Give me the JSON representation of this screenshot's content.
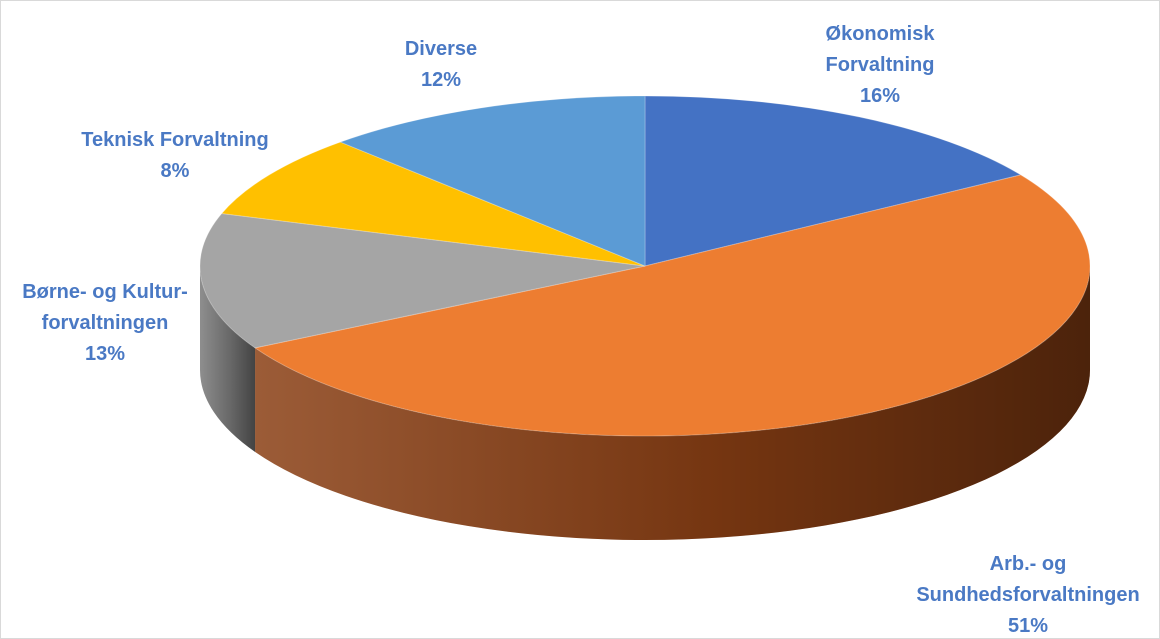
{
  "chart_data": {
    "type": "pie",
    "title": "",
    "slices": [
      {
        "label_lines": [
          "Økonomisk",
          "Forvaltning"
        ],
        "pct_label": "16%",
        "value": 16,
        "color": "#4472c4",
        "side_color": "#2f528f"
      },
      {
        "label_lines": [
          "Arb.- og",
          "Sundhedsforvaltningen"
        ],
        "pct_label": "51%",
        "value": 51,
        "color": "#ed7d31",
        "side_color": "#8a3f14"
      },
      {
        "label_lines": [
          "Børne- og Kultur-",
          "forvaltningen"
        ],
        "pct_label": "13%",
        "value": 13,
        "color": "#a5a5a5",
        "side_color": "#7a7a7a"
      },
      {
        "label_lines": [
          "Teknisk Forvaltning"
        ],
        "pct_label": "8%",
        "value": 8,
        "color": "#ffc000",
        "side_color": "#bf9000"
      },
      {
        "label_lines": [
          "Diverse"
        ],
        "pct_label": "12%",
        "value": 12,
        "color": "#5b9bd5",
        "side_color": "#41719c"
      }
    ],
    "label_color": "#4a79c4",
    "style": "3d-pie"
  }
}
